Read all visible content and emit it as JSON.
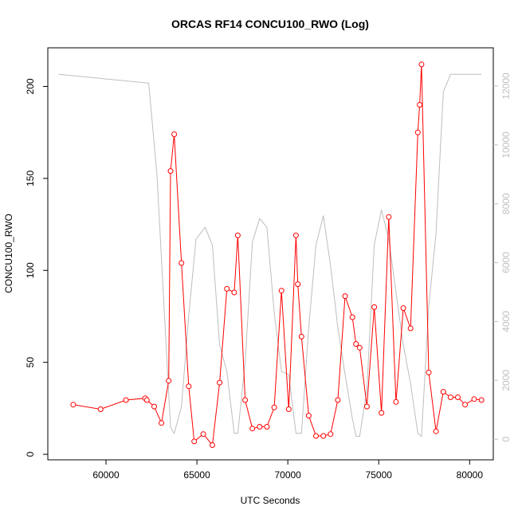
{
  "chart_data": {
    "type": "line",
    "title": "ORCAS RF14 CONCU100_RWO (Log)",
    "xlabel": "UTC Seconds",
    "ylabel": "CONCU100_RWO",
    "xlim": [
      56800,
      81300
    ],
    "ylim": [
      -3,
      221
    ],
    "y2lim": [
      -700,
      13300
    ],
    "xticks": [
      60000,
      65000,
      70000,
      75000,
      80000
    ],
    "yticks": [
      0,
      50,
      100,
      150,
      200
    ],
    "y2ticks": [
      0,
      2000,
      4000,
      6000,
      8000,
      10000,
      12000
    ],
    "grid": false,
    "colors": {
      "primary": "#ff0000",
      "secondary": "#bebebe"
    },
    "series": [
      {
        "axis": "left",
        "style": "line+markers",
        "x": [
          58200,
          59700,
          61100,
          62150,
          62250,
          62650,
          63050,
          63450,
          63550,
          63750,
          64150,
          64550,
          64850,
          65350,
          65850,
          66250,
          66650,
          67050,
          67250,
          67650,
          68050,
          68450,
          68850,
          69250,
          69650,
          70050,
          70450,
          70550,
          70750,
          71150,
          71550,
          71950,
          72350,
          72750,
          73150,
          73550,
          73750,
          73950,
          74350,
          74750,
          75150,
          75550,
          75950,
          76350,
          76750,
          77150,
          77250,
          77350,
          77750,
          78150,
          78550,
          78950,
          79350,
          79750,
          80250,
          80650
        ],
        "y": [
          27,
          24.5,
          29.5,
          30.5,
          29.5,
          26,
          17,
          40,
          154,
          174,
          104,
          37,
          7,
          11,
          5,
          39,
          90,
          88,
          119,
          29.5,
          14,
          15,
          15,
          25.5,
          89,
          24.5,
          119,
          92.5,
          64,
          21,
          10,
          10,
          11,
          29.5,
          86,
          74.5,
          60,
          58,
          26,
          80,
          22.5,
          129,
          28.5,
          79.5,
          68.5,
          175,
          190,
          212,
          44.5,
          12.5,
          34,
          31,
          31,
          27,
          30,
          29.5
        ]
      },
      {
        "axis": "right",
        "style": "line",
        "x": [
          57400,
          62350,
          62800,
          63550,
          63750,
          64150,
          64550,
          64950,
          65450,
          65850,
          66250,
          66650,
          67050,
          67250,
          67650,
          68050,
          68450,
          68850,
          69250,
          69650,
          70050,
          70450,
          70750,
          71150,
          71550,
          71950,
          72350,
          72750,
          73150,
          73550,
          73750,
          73950,
          74350,
          74750,
          75150,
          75550,
          75950,
          76350,
          76750,
          77150,
          77350,
          77750,
          78150,
          78550,
          78950,
          79350,
          80650
        ],
        "y": [
          12400,
          12100,
          9000,
          400,
          200,
          1100,
          4200,
          6800,
          7200,
          6600,
          3200,
          2300,
          200,
          200,
          2600,
          6700,
          7500,
          7200,
          4300,
          2300,
          2200,
          200,
          200,
          3800,
          6600,
          7600,
          5900,
          3800,
          2200,
          700,
          100,
          100,
          1700,
          6600,
          7800,
          6800,
          5000,
          3200,
          1900,
          200,
          100,
          4500,
          7000,
          11800,
          12400,
          12400,
          12400
        ]
      }
    ]
  }
}
